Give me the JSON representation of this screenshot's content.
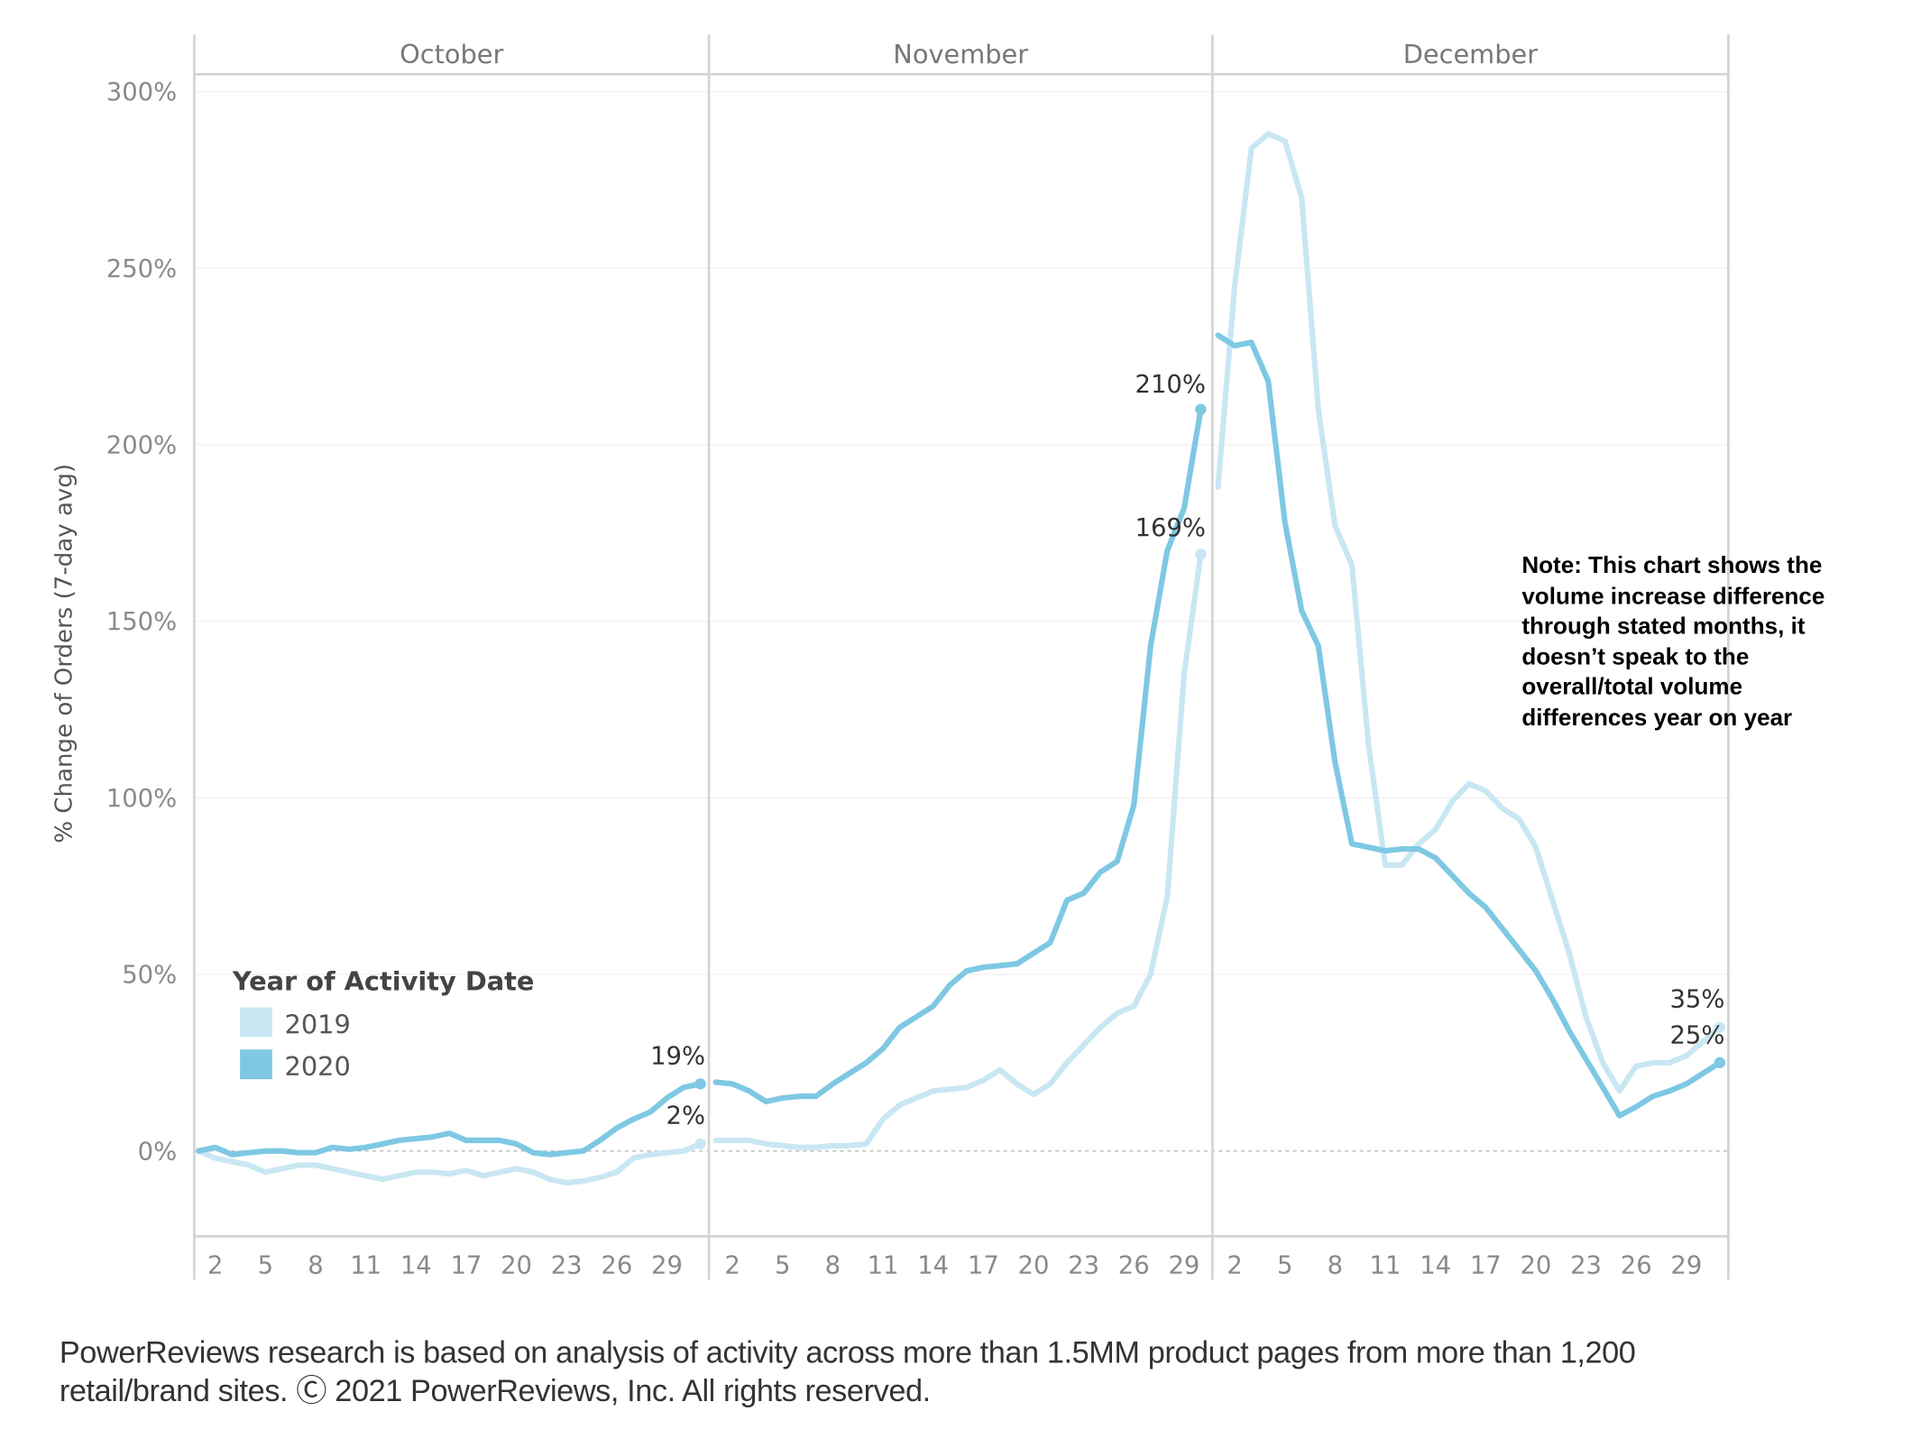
{
  "chart_data": {
    "type": "line",
    "ylabel": "% Change of Orders (7-day avg)",
    "ylim": [
      -25,
      300
    ],
    "yticks": [
      "300%",
      "250%",
      "200%",
      "150%",
      "100%",
      "50%",
      "0%"
    ],
    "ytick_values": [
      300,
      250,
      200,
      150,
      100,
      50,
      0
    ],
    "grid": true,
    "months": [
      "October",
      "November",
      "December"
    ],
    "month_days": [
      31,
      30,
      31
    ],
    "xticks": [
      "2",
      "5",
      "8",
      "11",
      "14",
      "17",
      "20",
      "23",
      "26",
      "29"
    ],
    "xtick_days": [
      2,
      5,
      8,
      11,
      14,
      17,
      20,
      23,
      26,
      29
    ],
    "legend": {
      "title": "Year of Activity Date",
      "placement": "bottom-left"
    },
    "series": [
      {
        "name": "2019",
        "color": "#c8e7f2",
        "values": {
          "October": [
            0,
            -2,
            -3,
            -4,
            -6,
            -5,
            -4,
            -4,
            -5,
            -6,
            -7,
            -8,
            -7,
            -6,
            -6,
            -6.5,
            -5.5,
            -7,
            -6,
            -5,
            -6,
            -8,
            -9,
            -8.5,
            -7.5,
            -6,
            -2,
            -1,
            -0.5,
            0,
            2
          ],
          "November": [
            3,
            3,
            3,
            2,
            1.5,
            1,
            1,
            1.5,
            1.5,
            2,
            9,
            13,
            15,
            17,
            17.5,
            18,
            20,
            23,
            19,
            16,
            19,
            25,
            30,
            35,
            39,
            41,
            50,
            72,
            135,
            169
          ],
          "December": [
            188,
            245,
            284,
            288,
            286,
            270,
            210,
            177,
            166,
            115,
            81,
            81,
            87,
            91,
            99,
            104,
            102,
            97,
            94,
            86,
            71,
            56,
            38,
            25,
            17,
            24,
            25,
            25,
            27,
            31,
            35
          ]
        }
      },
      {
        "name": "2020",
        "color": "#7ec8e3",
        "values": {
          "October": [
            0,
            1,
            -1,
            -0.5,
            0,
            0,
            -0.5,
            -0.5,
            1,
            0.5,
            1,
            2,
            3,
            3.5,
            4,
            5,
            3,
            3,
            3,
            2,
            -0.5,
            -1,
            -0.5,
            0,
            3,
            6.5,
            9,
            11,
            15,
            18,
            19
          ],
          "November": [
            19.5,
            19,
            17,
            14,
            15,
            15.5,
            15.5,
            19,
            22,
            25,
            29,
            35,
            38,
            41,
            47,
            51,
            52,
            52.5,
            53,
            56,
            59,
            71,
            73,
            79,
            82,
            98,
            143,
            170,
            182,
            210
          ],
          "December": [
            231,
            228,
            229,
            218,
            178,
            153,
            143,
            110,
            87,
            86,
            85,
            85.5,
            85.5,
            83,
            78,
            73,
            69,
            63,
            57,
            51,
            43,
            34,
            26,
            18,
            10,
            12.5,
            15.5,
            17,
            19,
            22,
            25
          ]
        }
      }
    ],
    "annotations": [
      {
        "text": "19%",
        "series": "2020",
        "month": "October",
        "day": 31,
        "value": 19
      },
      {
        "text": "2%",
        "series": "2019",
        "month": "October",
        "day": 31,
        "value": 2
      },
      {
        "text": "210%",
        "series": "2020",
        "month": "November",
        "day": 30,
        "value": 210
      },
      {
        "text": "169%",
        "series": "2019",
        "month": "November",
        "day": 30,
        "value": 169
      },
      {
        "text": "35%",
        "series": "2019",
        "month": "December",
        "day": 31,
        "value": 35
      },
      {
        "text": "25%",
        "series": "2020",
        "month": "December",
        "day": 31,
        "value": 25
      }
    ]
  },
  "note": "Note: This chart shows the\nvolume increase difference\nthrough stated months, it\ndoesn’t speak to the\noverall/total volume\ndifferences year on year",
  "footer": "PowerReviews research is based on analysis of activity across more than 1.5MM product pages from more than 1,200\nretail/brand sites. Ⓒ 2021 PowerReviews, Inc. All rights reserved."
}
